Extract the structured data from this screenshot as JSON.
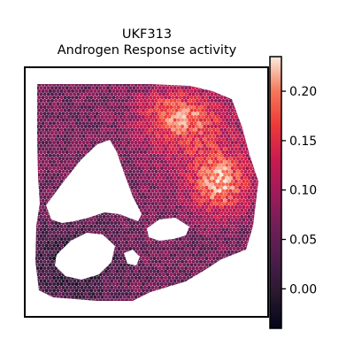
{
  "chart_data": {
    "type": "heatmap",
    "title_lines": [
      "UKF313",
      "Androgen Response activity"
    ],
    "colorbar": {
      "colormap": "rocket",
      "range": [
        -0.04,
        0.235
      ],
      "ticks": [
        0.0,
        0.05,
        0.1,
        0.15,
        0.2
      ],
      "tick_labels": [
        "0.00",
        "0.05",
        "0.10",
        "0.15",
        "0.20"
      ]
    },
    "grid": false,
    "axes_visible": false
  }
}
